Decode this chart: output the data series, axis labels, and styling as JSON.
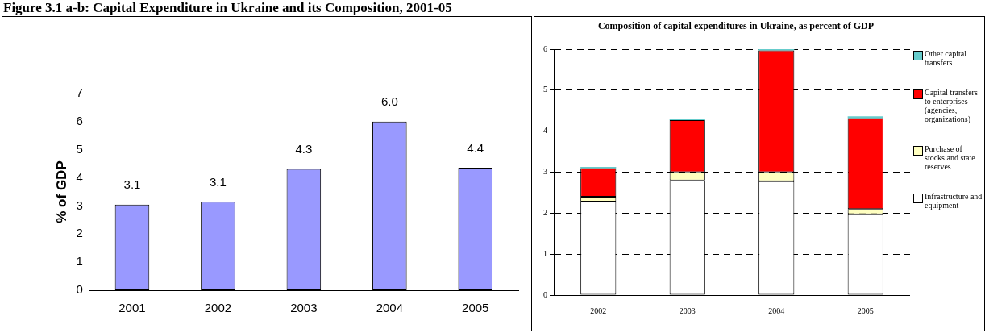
{
  "chart_data": [
    {
      "type": "bar",
      "title": "Figure 3.1 a-b: Capital Expenditure in Ukraine and its Composition, 2001-05",
      "ylabel": "% of GDP",
      "categories": [
        "2001",
        "2002",
        "2003",
        "2004",
        "2005"
      ],
      "values": [
        3.05,
        3.15,
        4.32,
        6.0,
        4.36
      ],
      "value_labels": [
        "3.1",
        "3.1",
        "4.3",
        "6.0",
        "4.4"
      ],
      "color": "#9999ff",
      "ylim": [
        0,
        7
      ],
      "yticks": [
        0,
        1,
        2,
        3,
        4,
        5,
        6,
        7
      ],
      "grid": false
    },
    {
      "type": "bar",
      "title": "Composition of capital expenditures in Ukraine, as percent of GDP",
      "categories": [
        "2002",
        "2003",
        "2004",
        "2005"
      ],
      "stacked": true,
      "series": [
        {
          "name": "Infrastructure and equipment",
          "color": "#ffffff",
          "values": [
            2.28,
            2.8,
            2.78,
            1.97
          ]
        },
        {
          "name": "Purchase of stocks and state reserves",
          "color": "#ffffc0",
          "values": [
            0.12,
            0.2,
            0.22,
            0.13
          ]
        },
        {
          "name": "Capital transfers to enterprises (agencies, organizations)",
          "color": "#ff0000",
          "values": [
            0.7,
            1.27,
            2.97,
            2.22
          ]
        },
        {
          "name": "Other capital transfers",
          "color": "#66cccc",
          "values": [
            0.03,
            0.04,
            0.03,
            0.04
          ]
        }
      ],
      "ylim": [
        0,
        6
      ],
      "yticks": [
        0,
        1,
        2,
        3,
        4,
        5,
        6
      ],
      "grid": "y",
      "legend": "right"
    }
  ]
}
